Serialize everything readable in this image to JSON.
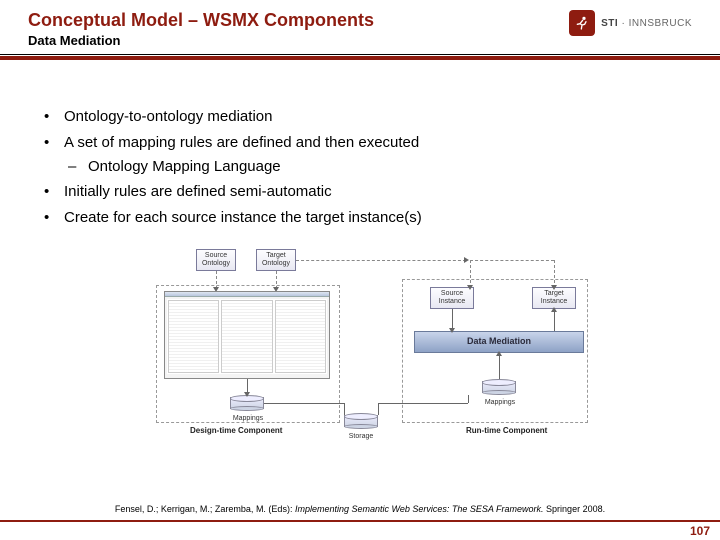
{
  "header": {
    "title": "Conceptual Model – WSMX Components",
    "subtitle": "Data Mediation"
  },
  "logo": {
    "brand_bold": "STI",
    "brand_light": "INNSBRUCK",
    "icon_name": "running-person-icon",
    "square_color": "#8e1c10"
  },
  "bullets": {
    "items": [
      "Ontology-to-ontology mediation",
      "A set of mapping rules are defined and then executed",
      "Initially rules are defined semi-automatic",
      "Create for each source instance the target instance(s)"
    ],
    "sub_after_index": 1,
    "sub_items": [
      "Ontology Mapping Language"
    ]
  },
  "diagram": {
    "source_ontology": "Source\nOntology",
    "target_ontology": "Target\nOntology",
    "source_instance": "Source\nInstance",
    "target_instance": "Target\nInstance",
    "data_mediation": "Data Mediation",
    "mappings_left": "Mappings",
    "mappings_right": "Mappings",
    "storage": "Storage",
    "design_time": "Design-time Component",
    "run_time": "Run-time Component"
  },
  "citation": {
    "authors": "Fensel, D.; Kerrigan, M.; Zaremba, M. (Eds): ",
    "title_italic": "Implementing Semantic Web Services: The SESA Framework.",
    "tail": " Springer 2008."
  },
  "page_number": "107",
  "colors": {
    "accent": "#8e1c10"
  }
}
